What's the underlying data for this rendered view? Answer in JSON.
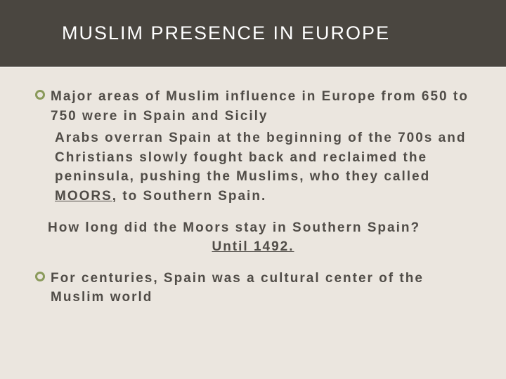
{
  "slide": {
    "title": "MUSLIM PRESENCE IN EUROPE",
    "bullet1": "Major areas of Muslim influence in Europe from 650 to 750 were in Spain and Sicily",
    "para_pre": "Arabs overran Spain at the beginning of the 700s and Christians slowly fought back and reclaimed the peninsula, pushing the Muslims, who they called ",
    "moors": "MOORS",
    "para_post": ", to Southern Spain.",
    "question": "How long did the Moors stay in Southern Spain?",
    "answer": "Until 1492.",
    "bullet2": "For centuries, Spain was a cultural center of the Muslim world"
  },
  "colors": {
    "background": "#ebe6df",
    "header_bg": "#4a4640",
    "title_color": "#ffffff",
    "text_color": "#504c47",
    "bullet_ring": "#8a9a5b"
  }
}
